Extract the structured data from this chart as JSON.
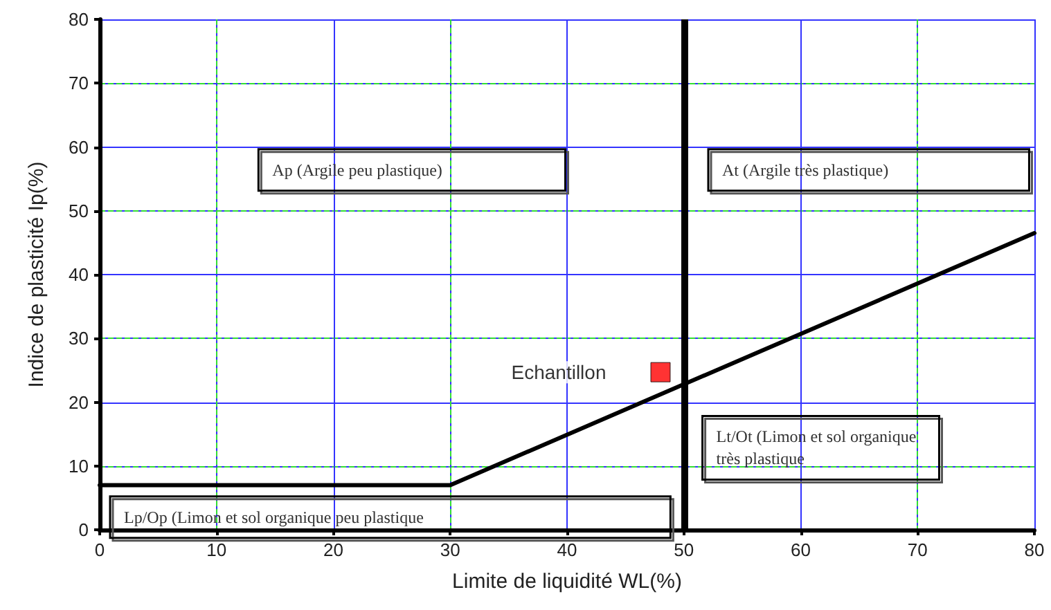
{
  "chart_data": {
    "type": "line",
    "xlabel": "Limite de liquidité WL(%)",
    "ylabel": "Indice de plasticité Ip(%)",
    "xlim": [
      0,
      80
    ],
    "ylim": [
      0,
      80
    ],
    "xticks": [
      0,
      10,
      20,
      30,
      40,
      50,
      60,
      70,
      80
    ],
    "yticks": [
      0,
      10,
      20,
      30,
      40,
      50,
      60,
      70,
      80
    ],
    "grid": true,
    "legend": false,
    "series": [
      {
        "color": "#000000",
        "marker": "none",
        "x": [
          0,
          30,
          80
        ],
        "values": [
          7,
          7,
          46.5
        ]
      },
      {
        "type": "scatter",
        "name": "Echantillon",
        "color": "#ff0000",
        "marker": "square",
        "x": [
          48
        ],
        "values": [
          24.7
        ]
      }
    ],
    "ref_lines": [
      {
        "axis": "x",
        "value": 50,
        "color": "#000000"
      }
    ],
    "annotations": [
      "Ap (Argile peu plastique)",
      "At (Argile très plastique)",
      "Lt/Ot (Limon et sol organique très plastique",
      "Lp/Op (Limon et sol organique peu plastique"
    ]
  }
}
